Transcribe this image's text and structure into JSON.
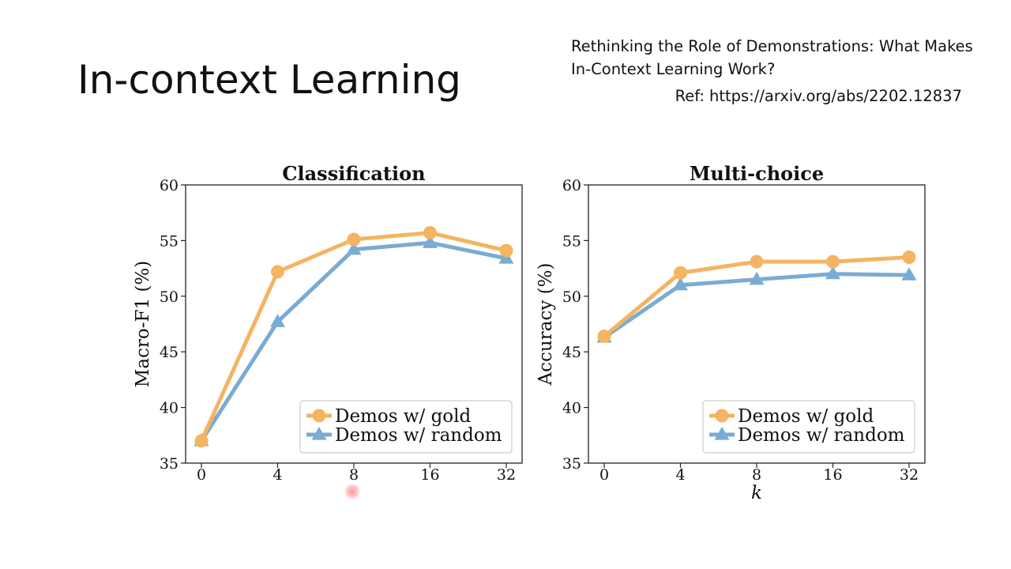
{
  "slide": {
    "title": "In-context Learning",
    "reference_title": "Rethinking the Role of Demonstrations: What Makes In-Context Learning Work?",
    "reference_prefix": "Ref:",
    "reference_url": "https://arxiv.org/abs/2202.12837"
  },
  "colors": {
    "gold": "#f5b461",
    "random": "#7aabd3",
    "axis": "#222222"
  },
  "chart_data": [
    {
      "type": "line",
      "title": "Classification",
      "xlabel": "",
      "ylabel": "Macro-F1 (%)",
      "categories": [
        "0",
        "4",
        "8",
        "16",
        "32"
      ],
      "ylim": [
        35,
        60
      ],
      "yticks": [
        35,
        40,
        45,
        50,
        55,
        60
      ],
      "grid": false,
      "legend_position": "lower-right",
      "series": [
        {
          "name": "Demos w/ gold",
          "marker": "circle",
          "values": [
            37.0,
            52.2,
            55.1,
            55.7,
            54.1
          ]
        },
        {
          "name": "Demos w/ random",
          "marker": "triangle",
          "values": [
            37.0,
            47.7,
            54.2,
            54.8,
            53.4
          ]
        }
      ]
    },
    {
      "type": "line",
      "title": "Multi-choice",
      "xlabel": "k",
      "ylabel": "Accuracy (%)",
      "categories": [
        "0",
        "4",
        "8",
        "16",
        "32"
      ],
      "ylim": [
        35,
        60
      ],
      "yticks": [
        35,
        40,
        45,
        50,
        55,
        60
      ],
      "grid": false,
      "legend_position": "lower-right",
      "series": [
        {
          "name": "Demos w/ gold",
          "marker": "circle",
          "values": [
            46.4,
            52.1,
            53.1,
            53.1,
            53.5
          ]
        },
        {
          "name": "Demos w/ random",
          "marker": "triangle",
          "values": [
            46.3,
            51.0,
            51.5,
            52.0,
            51.9
          ]
        }
      ]
    }
  ]
}
